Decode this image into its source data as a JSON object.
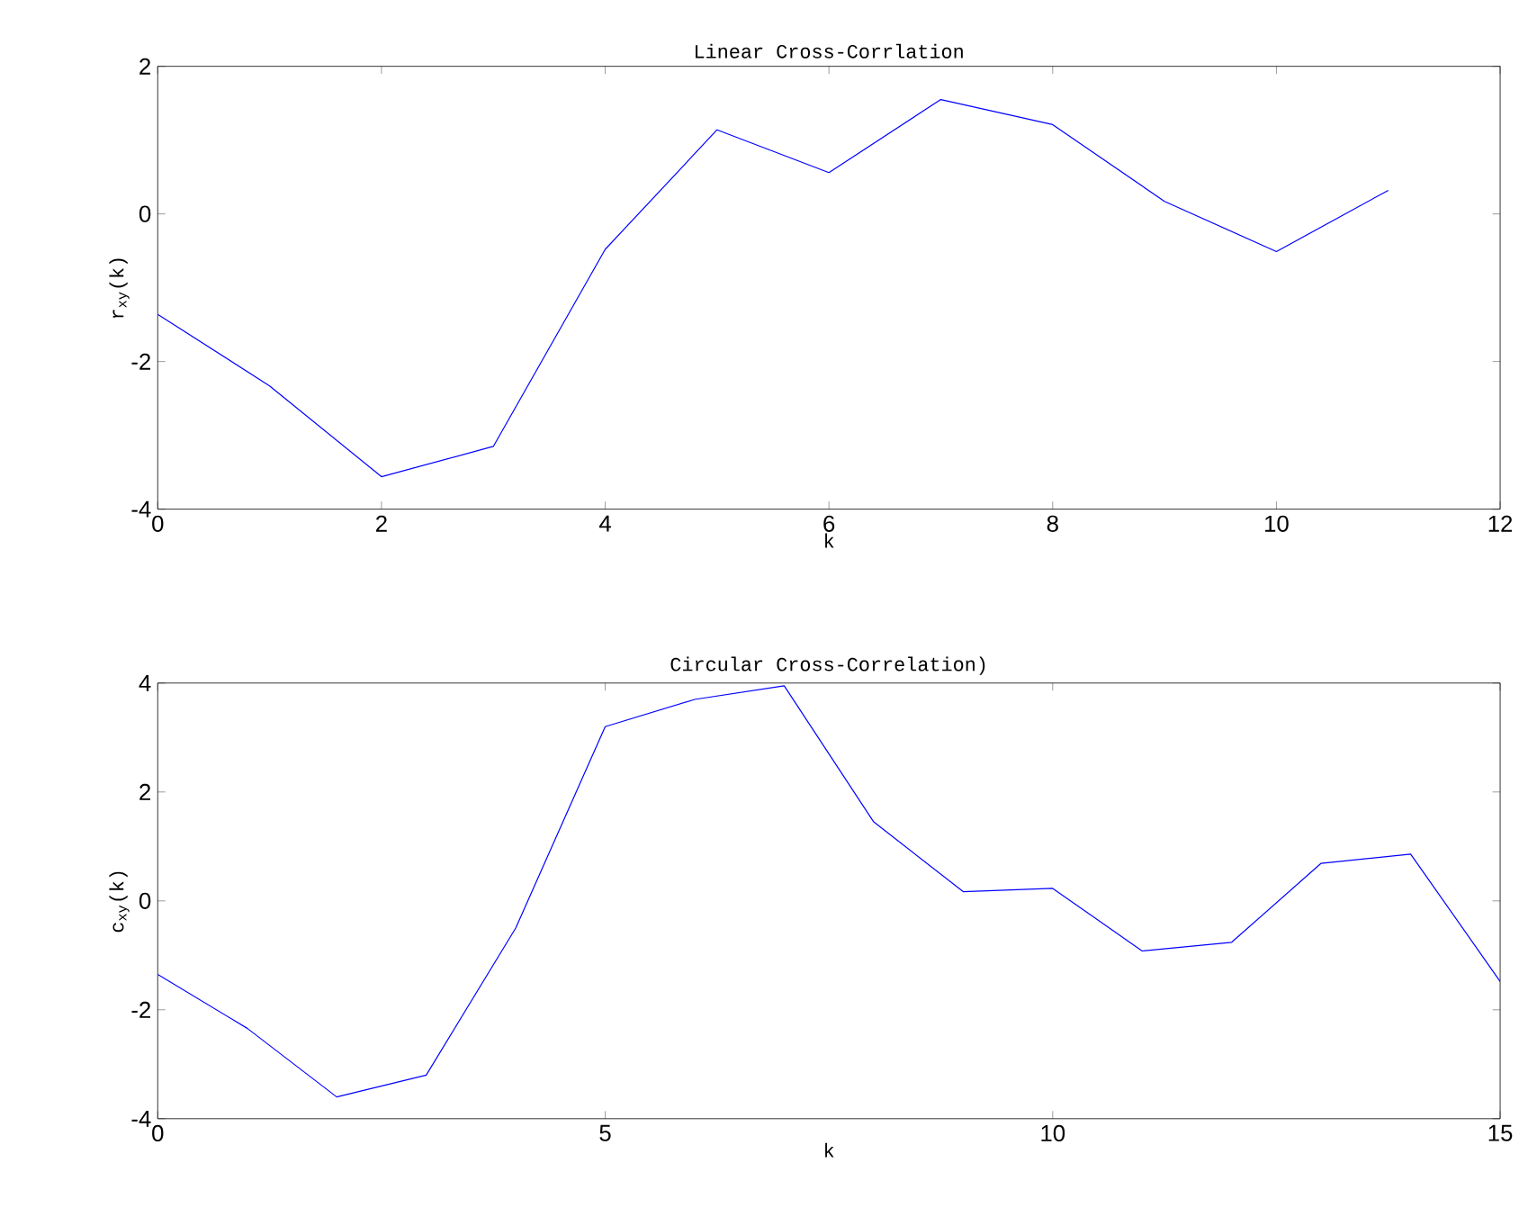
{
  "chart_data": [
    {
      "type": "line",
      "title": "Linear Cross-Corrlation",
      "xlabel": "k",
      "ylabel": "r$_{xy}$(k)",
      "x": [
        0,
        1,
        2,
        3,
        4,
        5,
        6,
        7,
        8,
        9,
        10,
        11
      ],
      "series": [
        {
          "color": "#0000ff",
          "values": [
            -1.36,
            -2.33,
            -3.56,
            -3.15,
            -0.48,
            1.14,
            0.56,
            1.55,
            1.21,
            0.17,
            -0.51,
            0.32
          ]
        }
      ],
      "xlim": [
        0,
        12
      ],
      "ylim": [
        -4,
        2
      ],
      "xticks": [
        0,
        2,
        4,
        6,
        8,
        10,
        12
      ],
      "yticks": [
        -4,
        -2,
        0,
        2
      ]
    },
    {
      "type": "line",
      "title": "Circular Cross-Correlation)",
      "xlabel": "k",
      "ylabel": "c$_{xy}$(k)",
      "x": [
        0,
        1,
        2,
        3,
        4,
        5,
        6,
        7,
        8,
        9,
        10,
        11,
        12,
        13,
        14,
        15
      ],
      "series": [
        {
          "color": "#0000ff",
          "values": [
            -1.35,
            -2.34,
            -3.6,
            -3.2,
            -0.5,
            3.2,
            3.7,
            3.95,
            1.45,
            0.17,
            0.23,
            -0.92,
            -0.76,
            0.69,
            0.86,
            -1.48
          ]
        }
      ],
      "xlim": [
        0,
        15
      ],
      "ylim": [
        -4,
        4
      ],
      "xticks": [
        0,
        5,
        10,
        15
      ],
      "yticks": [
        -4,
        -2,
        0,
        2,
        4
      ]
    }
  ]
}
